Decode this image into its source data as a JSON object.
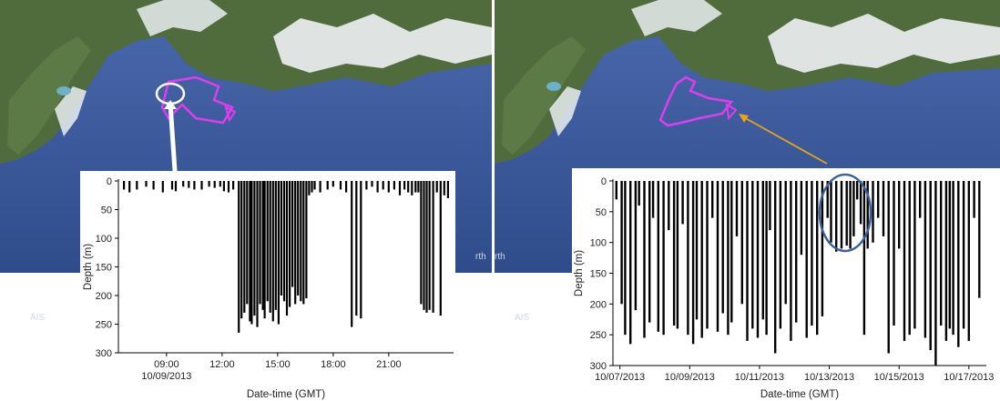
{
  "colors": {
    "ocean": "#3d5a9c",
    "ocean_light": "#4a69ad",
    "land": "#4f6a3a",
    "snow": "#f4f6f8",
    "track": "#e23cf0",
    "arrow_right": "#e8a317",
    "highlight_ellipse_right": "#3b5f9a",
    "highlight_ellipse_left": "#ffffff"
  },
  "panels": [
    {
      "map": {
        "label": "AIS",
        "fragment_text": "rth"
      },
      "chart_data": {
        "type": "bar",
        "x_kind": "time",
        "xlim_hours": [
          6.4,
          24.5
        ],
        "ylim": [
          0,
          300
        ],
        "y_inverted": true,
        "yticks": [
          0,
          50,
          100,
          150,
          200,
          250,
          300
        ],
        "ylabel": "Depth (m)",
        "xlabel": "Date-time (GMT)",
        "xticks": [
          {
            "x": 9,
            "label": "09:00",
            "sublabel": "10/09/2013"
          },
          {
            "x": 12,
            "label": "12:00"
          },
          {
            "x": 15,
            "label": "15:00"
          },
          {
            "x": 18,
            "label": "18:00"
          },
          {
            "x": 21,
            "label": "21:00"
          }
        ],
        "x": [
          6.7,
          7.0,
          7.4,
          7.9,
          8.3,
          8.8,
          9.3,
          9.5,
          9.9,
          10.2,
          10.5,
          10.9,
          11.3,
          11.6,
          11.9,
          12.1,
          12.35,
          12.6,
          12.9,
          13.05,
          13.2,
          13.35,
          13.5,
          13.6,
          13.75,
          13.9,
          14.05,
          14.2,
          14.3,
          14.45,
          14.6,
          14.75,
          14.9,
          15.05,
          15.2,
          15.35,
          15.5,
          15.65,
          15.8,
          15.95,
          16.1,
          16.25,
          16.4,
          16.55,
          16.7,
          16.85,
          17.0,
          17.3,
          17.7,
          18.0,
          18.4,
          18.7,
          19.0,
          19.25,
          19.5,
          19.8,
          20.1,
          20.4,
          20.7,
          21.0,
          21.3,
          21.6,
          21.85,
          22.05,
          22.25,
          22.45,
          22.6,
          22.75,
          22.9,
          23.05,
          23.2,
          23.4,
          23.6,
          23.8,
          24.0,
          24.2
        ],
        "values": [
          15,
          20,
          15,
          10,
          15,
          20,
          15,
          18,
          10,
          12,
          15,
          15,
          10,
          12,
          10,
          18,
          20,
          15,
          265,
          240,
          230,
          215,
          245,
          250,
          235,
          255,
          215,
          225,
          240,
          210,
          230,
          245,
          225,
          250,
          200,
          210,
          235,
          220,
          185,
          215,
          200,
          210,
          215,
          205,
          25,
          20,
          15,
          20,
          15,
          10,
          15,
          20,
          255,
          235,
          240,
          15,
          10,
          20,
          15,
          20,
          15,
          25,
          15,
          20,
          25,
          20,
          20,
          215,
          225,
          230,
          225,
          230,
          20,
          235,
          25,
          30
        ]
      }
    },
    {
      "map": {
        "label": "AIS",
        "fragment_text": "rth"
      },
      "chart_data": {
        "type": "bar",
        "x_kind": "date",
        "xlim": [
          "10/07/2013",
          "10/17/2013"
        ],
        "xlim_days": [
          6.8,
          17.5
        ],
        "ylim": [
          0,
          300
        ],
        "y_inverted": true,
        "yticks": [
          0,
          50,
          100,
          150,
          200,
          250,
          300
        ],
        "ylabel": "Depth (m)",
        "xlabel": "Date-time (GMT)",
        "xticks": [
          {
            "x": 7,
            "label": "10/07/2013"
          },
          {
            "x": 9,
            "label": "10/09/2013"
          },
          {
            "x": 11,
            "label": "10/11/2013"
          },
          {
            "x": 13,
            "label": "10/13/2013"
          },
          {
            "x": 15,
            "label": "10/15/2013"
          },
          {
            "x": 17,
            "label": "10/17/2013"
          }
        ],
        "x": [
          6.9,
          7.05,
          7.15,
          7.3,
          7.45,
          7.55,
          7.7,
          7.85,
          7.95,
          8.1,
          8.25,
          8.4,
          8.55,
          8.65,
          8.8,
          8.95,
          9.1,
          9.2,
          9.35,
          9.5,
          9.65,
          9.8,
          9.95,
          10.1,
          10.2,
          10.35,
          10.5,
          10.65,
          10.8,
          10.95,
          11.1,
          11.2,
          11.3,
          11.45,
          11.6,
          11.75,
          11.9,
          12.05,
          12.2,
          12.35,
          12.5,
          12.65,
          12.8,
          12.95,
          13.05,
          13.2,
          13.35,
          13.5,
          13.6,
          13.7,
          13.8,
          13.9,
          14.0,
          14.1,
          14.25,
          14.4,
          14.55,
          14.7,
          14.85,
          15.0,
          15.15,
          15.3,
          15.45,
          15.6,
          15.75,
          15.9,
          16.05,
          16.2,
          16.35,
          16.45,
          16.55,
          16.7,
          16.85,
          17.0,
          17.15,
          17.3
        ],
        "values": [
          30,
          200,
          250,
          265,
          210,
          40,
          255,
          230,
          60,
          245,
          250,
          80,
          235,
          240,
          70,
          250,
          265,
          225,
          255,
          240,
          60,
          245,
          215,
          250,
          230,
          90,
          200,
          260,
          240,
          255,
          225,
          250,
          80,
          280,
          240,
          200,
          260,
          230,
          120,
          255,
          235,
          250,
          220,
          60,
          100,
          115,
          110,
          105,
          110,
          90,
          30,
          70,
          250,
          110,
          100,
          60,
          90,
          280,
          235,
          110,
          260,
          250,
          240,
          60,
          255,
          275,
          300,
          235,
          260,
          240,
          250,
          270,
          240,
          260,
          60,
          190
        ]
      }
    }
  ]
}
